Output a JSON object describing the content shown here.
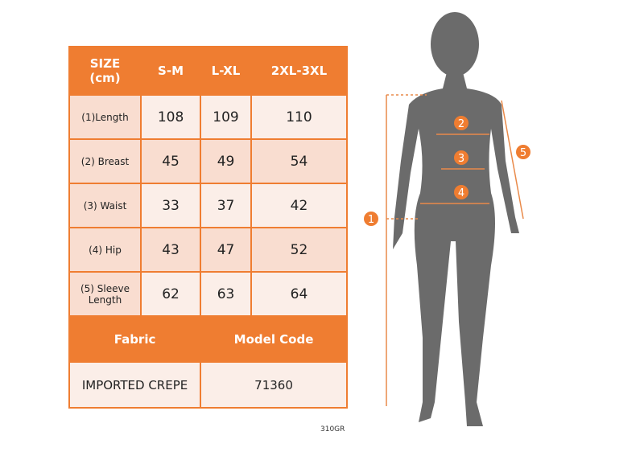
{
  "table": {
    "header": [
      "SIZE\n(cm)",
      "S-M",
      "L-XL",
      "2XL-3XL"
    ],
    "header_line1": "SIZE",
    "header_line2": "(cm)",
    "rows": [
      {
        "label": "(1)Length",
        "values": [
          "108",
          "109",
          "110"
        ]
      },
      {
        "label": "(2) Breast",
        "values": [
          "45",
          "49",
          "54"
        ]
      },
      {
        "label": "(3) Waist",
        "values": [
          "33",
          "37",
          "42"
        ]
      },
      {
        "label": "(4) Hip",
        "values": [
          "43",
          "47",
          "52"
        ]
      },
      {
        "label": "(5) Sleeve Length",
        "values": [
          "62",
          "63",
          "64"
        ]
      }
    ],
    "fabric_label": "Fabric",
    "model_code_label": "Model Code",
    "fabric_value": "IMPORTED CREPE",
    "model_code_value": "71360"
  },
  "product_code": "310GR",
  "figure": {
    "markers": [
      "1",
      "2",
      "3",
      "4",
      "5"
    ]
  },
  "colors": {
    "accent": "#ef7d31",
    "silhouette": "#6b6b6b"
  }
}
